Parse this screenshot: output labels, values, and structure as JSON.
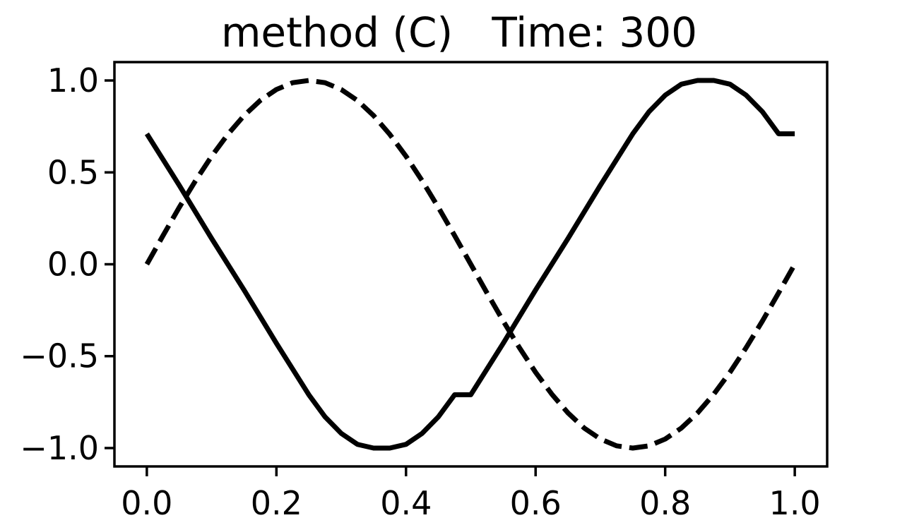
{
  "chart_data": {
    "type": "line",
    "title": "method (C)   Time: 300",
    "xlabel": "",
    "ylabel": "",
    "xlim": [
      -0.05,
      1.05
    ],
    "ylim": [
      -1.1,
      1.1
    ],
    "x_ticks": [
      0.0,
      0.2,
      0.4,
      0.6,
      0.8,
      1.0
    ],
    "x_tick_labels": [
      "0.0",
      "0.2",
      "0.4",
      "0.6",
      "0.8",
      "1.0"
    ],
    "y_ticks": [
      1.0,
      0.5,
      0.0,
      -0.5,
      -1.0
    ],
    "y_tick_labels": [
      "1.0",
      "0.5",
      "0.0",
      "−0.5",
      "−1.0"
    ],
    "grid": false,
    "legend": "none",
    "series": [
      {
        "style": "solid",
        "color": "#000000",
        "x": [
          0.0,
          0.05,
          0.1,
          0.15,
          0.2,
          0.25,
          0.275,
          0.3,
          0.325,
          0.35,
          0.375,
          0.4,
          0.425,
          0.45,
          0.475,
          0.5,
          0.55,
          0.6,
          0.65,
          0.7,
          0.75,
          0.775,
          0.8,
          0.825,
          0.85,
          0.875,
          0.9,
          0.925,
          0.95,
          0.975,
          1.0
        ],
        "y": [
          0.71,
          0.43,
          0.14,
          -0.14,
          -0.43,
          -0.71,
          -0.83,
          -0.92,
          -0.98,
          -1.0,
          -1.0,
          -0.98,
          -0.92,
          -0.83,
          -0.71,
          -0.71,
          -0.43,
          -0.14,
          0.14,
          0.43,
          0.71,
          0.83,
          0.92,
          0.98,
          1.0,
          1.0,
          0.98,
          0.92,
          0.83,
          0.71,
          0.71
        ]
      },
      {
        "style": "dashed",
        "color": "#000000",
        "x": [
          0.0,
          0.025,
          0.05,
          0.075,
          0.1,
          0.125,
          0.15,
          0.175,
          0.2,
          0.225,
          0.25,
          0.275,
          0.3,
          0.325,
          0.35,
          0.375,
          0.4,
          0.425,
          0.45,
          0.475,
          0.5,
          0.525,
          0.55,
          0.575,
          0.6,
          0.625,
          0.65,
          0.675,
          0.7,
          0.725,
          0.75,
          0.775,
          0.8,
          0.825,
          0.85,
          0.875,
          0.9,
          0.925,
          0.95,
          0.975,
          1.0
        ],
        "y": [
          0.0,
          0.156,
          0.309,
          0.454,
          0.588,
          0.707,
          0.809,
          0.891,
          0.951,
          0.988,
          1.0,
          0.988,
          0.951,
          0.891,
          0.809,
          0.707,
          0.588,
          0.454,
          0.309,
          0.156,
          0.0,
          -0.156,
          -0.309,
          -0.454,
          -0.588,
          -0.707,
          -0.809,
          -0.891,
          -0.951,
          -0.988,
          -1.0,
          -0.988,
          -0.951,
          -0.891,
          -0.809,
          -0.707,
          -0.588,
          -0.454,
          -0.309,
          -0.156,
          0.0
        ]
      }
    ]
  }
}
